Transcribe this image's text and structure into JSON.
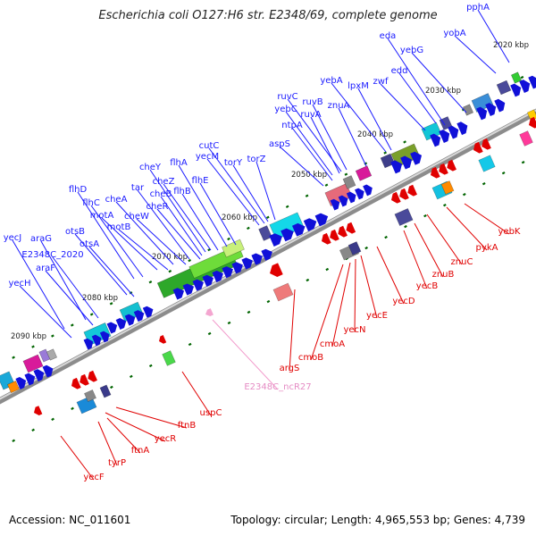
{
  "title": "Escherichia coli O127:H6 str. E2348/69, complete genome",
  "footer": {
    "accession": "Accession: NC_011601",
    "summary": "Topology: circular; Length: 4,965,553 bp; Genes: 4,739"
  },
  "colors": {
    "forward_gene": "#1010d8",
    "reverse_gene": "#e00000",
    "ncrna": "#f4a6d0",
    "forward_label_line": "#1a1aff",
    "reverse_label_line": "#e00000",
    "ncrna_label_line": "#f29ccc",
    "tick": "#006400",
    "backbone": "#8c8c8c"
  },
  "scale_labels": [
    "2020 kbp",
    "2030 kbp",
    "2040 kbp",
    "2050 kbp",
    "2060 kbp",
    "2070 kbp",
    "2080 kbp",
    "2090 kbp"
  ],
  "forward_genes": [
    "pphA",
    "yobA",
    "eda",
    "yebG",
    "edd",
    "zwf",
    "yebA",
    "lpxM",
    "ruvC",
    "ruvB",
    "yebC",
    "ruvA",
    "znuA",
    "ntpA",
    "aspS",
    "cutC",
    "yecM",
    "torY",
    "torZ",
    "cheY",
    "flhA",
    "cheZ",
    "flhE",
    "cheB",
    "flhB",
    "tar",
    "cheR",
    "cheA",
    "flhD",
    "flhC",
    "cheW",
    "motA",
    "motB",
    "otsB",
    "otsA",
    "yecJ",
    "araG",
    "E2348C_2020",
    "araF",
    "yecH"
  ],
  "reverse_genes": [
    "yebK",
    "pykA",
    "znuC",
    "znuB",
    "yecB",
    "yecD",
    "yecE",
    "yecN",
    "cmoA",
    "cmoB",
    "argS",
    "uspC",
    "ftnB",
    "yecR",
    "ftnA",
    "tyrP",
    "yecF"
  ],
  "ncrna_genes": [
    "E2348C_ncR27"
  ]
}
